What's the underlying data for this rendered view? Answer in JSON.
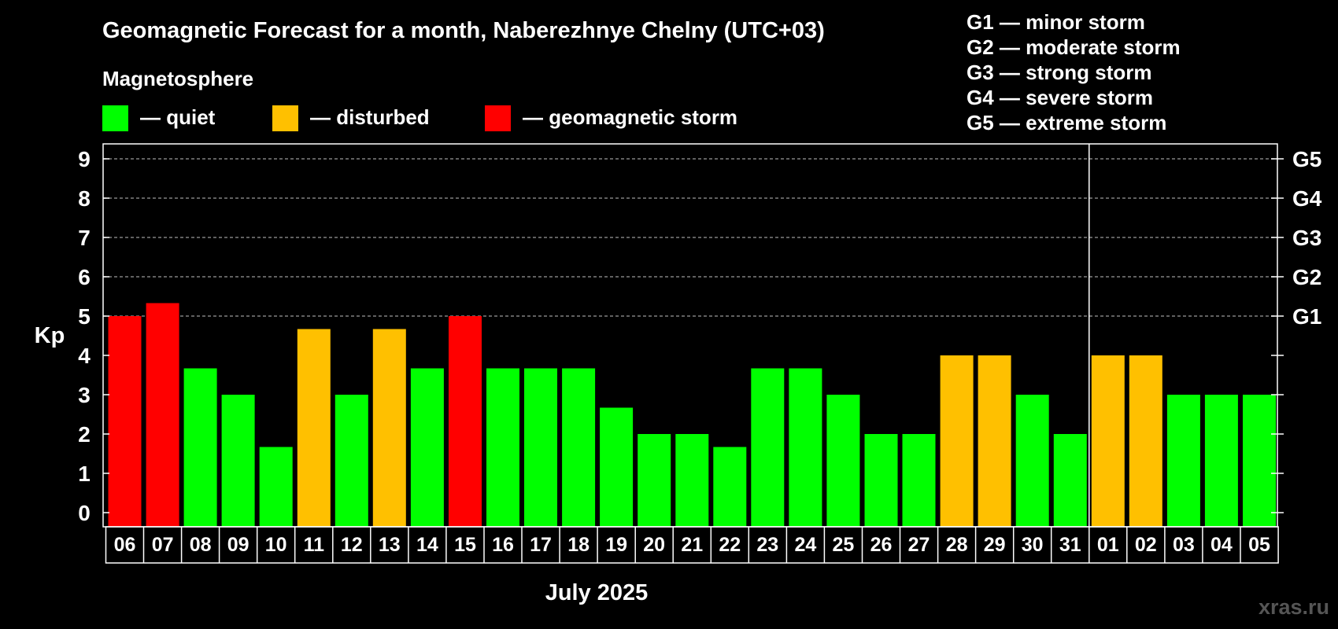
{
  "colors": {
    "quiet": "#00ff00",
    "disturbed": "#ffc000",
    "storm": "#ff0000",
    "background": "#000000",
    "axis": "#ffffff",
    "grid": "#808080",
    "watermark": "#555555"
  },
  "chart_data": {
    "type": "bar",
    "title": "Geomagnetic Forecast for a month, Naberezhnye Chelny (UTC+03)",
    "subtitle": "Magnetosphere",
    "ylabel": "Kp",
    "xlabel": "July 2025",
    "ylim": [
      0,
      9
    ],
    "yticks": [
      "0",
      "1",
      "2",
      "3",
      "4",
      "5",
      "6",
      "7",
      "8",
      "9"
    ],
    "g_scale_ticks": [
      {
        "kp": 5,
        "label": "G1"
      },
      {
        "kp": 6,
        "label": "G2"
      },
      {
        "kp": 7,
        "label": "G3"
      },
      {
        "kp": 8,
        "label": "G4"
      },
      {
        "kp": 9,
        "label": "G5"
      }
    ],
    "legend": [
      {
        "key": "quiet",
        "label": "— quiet"
      },
      {
        "key": "disturbed",
        "label": "— disturbed"
      },
      {
        "key": "storm",
        "label": "— geomagnetic storm"
      }
    ],
    "g_legend": [
      "G1 — minor storm",
      "G2 — moderate storm",
      "G3 — strong storm",
      "G4 — severe storm",
      "G5 — extreme storm"
    ],
    "month_boundary_after": "31",
    "categories": [
      "06",
      "07",
      "08",
      "09",
      "10",
      "11",
      "12",
      "13",
      "14",
      "15",
      "16",
      "17",
      "18",
      "19",
      "20",
      "21",
      "22",
      "23",
      "24",
      "25",
      "26",
      "27",
      "28",
      "29",
      "30",
      "31",
      "01",
      "02",
      "03",
      "04",
      "05"
    ],
    "values": [
      5.0,
      5.33,
      3.67,
      3.0,
      1.67,
      4.67,
      3.0,
      4.67,
      3.67,
      5.0,
      3.67,
      3.67,
      3.67,
      2.67,
      2.0,
      2.0,
      1.67,
      3.67,
      3.67,
      3.0,
      2.0,
      2.0,
      4.0,
      4.0,
      3.0,
      2.0,
      4.0,
      4.0,
      3.0,
      3.0,
      3.0
    ],
    "levels": [
      "storm",
      "storm",
      "quiet",
      "quiet",
      "quiet",
      "disturbed",
      "quiet",
      "disturbed",
      "quiet",
      "storm",
      "quiet",
      "quiet",
      "quiet",
      "quiet",
      "quiet",
      "quiet",
      "quiet",
      "quiet",
      "quiet",
      "quiet",
      "quiet",
      "quiet",
      "disturbed",
      "disturbed",
      "quiet",
      "quiet",
      "disturbed",
      "disturbed",
      "quiet",
      "quiet",
      "quiet"
    ]
  },
  "watermark": "xras.ru"
}
